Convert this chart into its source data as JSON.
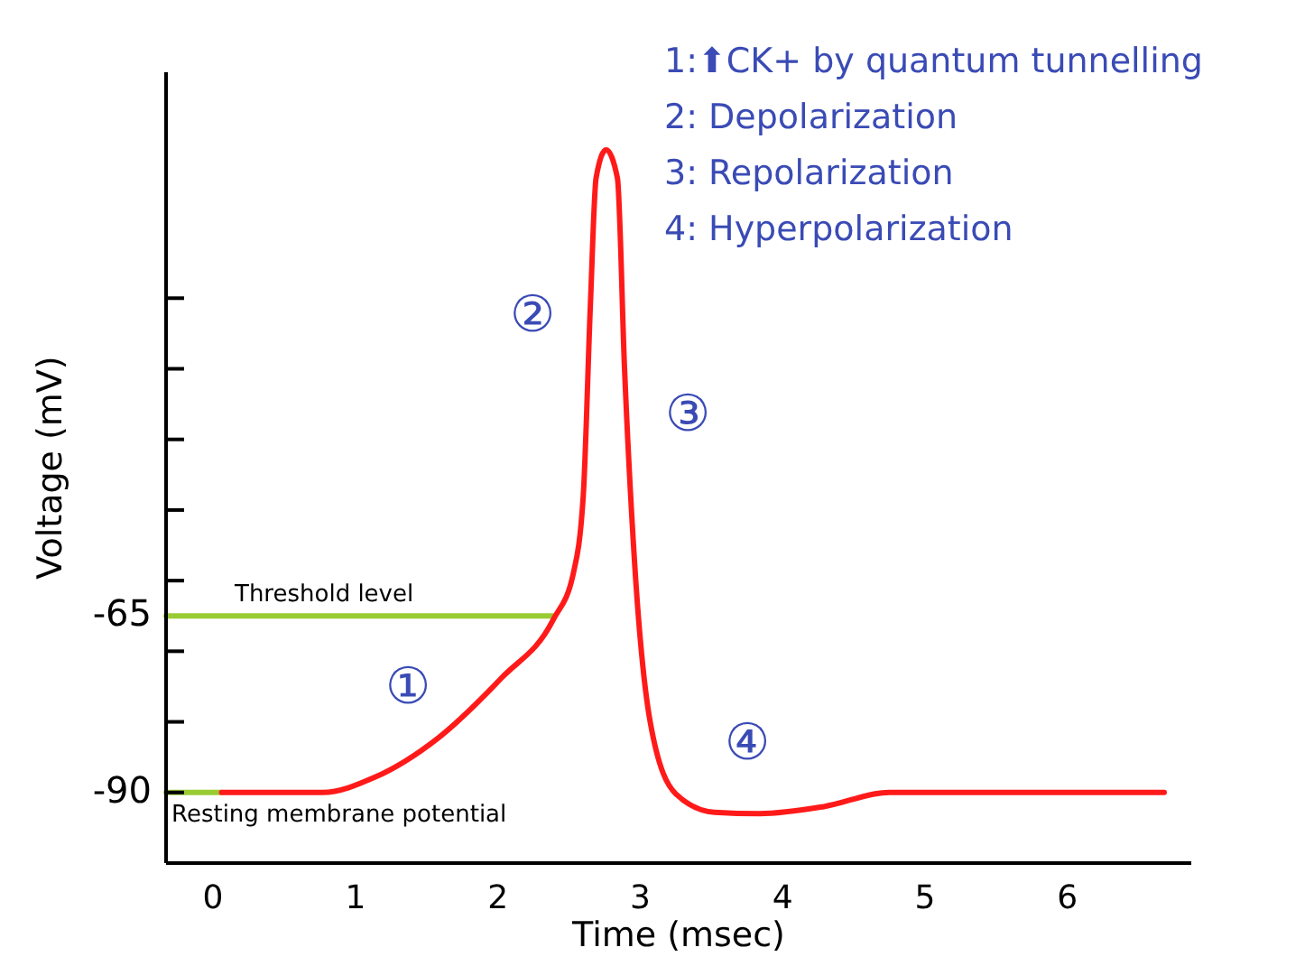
{
  "chart_data": {
    "type": "line",
    "xlabel": "Time (msec)",
    "ylabel": "Voltage (mV)",
    "xlim": [
      -0.33,
      6.87
    ],
    "ylim": [
      -100,
      12
    ],
    "xticks": [
      0,
      1,
      2,
      3,
      4,
      5,
      6
    ],
    "yticks": [
      -90,
      {
        "value": -80,
        "label": null
      },
      {
        "value": -70,
        "label": null
      },
      -65,
      {
        "value": -60,
        "label": null
      },
      {
        "value": -50,
        "label": null
      },
      {
        "value": -40,
        "label": null
      },
      {
        "value": -30,
        "label": null
      },
      {
        "value": -20,
        "label": null
      }
    ],
    "grid": false,
    "marker": "none",
    "line_style": "solid",
    "series": [
      {
        "color": "#99cc33",
        "x": [
          -0.33,
          2.39
        ],
        "values": [
          -65,
          -65
        ]
      },
      {
        "color": "#99cc33",
        "x": [
          -0.33,
          0.06
        ],
        "values": [
          -90,
          -90
        ]
      },
      {
        "color": "#ff1a1a",
        "x": [
          0.06,
          0.77,
          1.13,
          1.58,
          2.03,
          2.39,
          2.53,
          2.6,
          2.65,
          2.69,
          2.76,
          2.84,
          2.89,
          2.96,
          3.07,
          3.25,
          3.52,
          3.84,
          4.29,
          4.75,
          6.68
        ],
        "values": [
          -90,
          -90,
          -87.9,
          -82.3,
          -73.7,
          -65.5,
          -59,
          -48,
          -21,
          -3,
          1,
          -3,
          -30,
          -57.3,
          -80,
          -90.2,
          -92.8,
          -93,
          -92,
          -90,
          -90
        ]
      }
    ],
    "annotations": [
      "1:⬆CK+ by quantum tunnelling",
      "2: Depolarization",
      "3: Repolarization",
      "4: Hyperpolarization",
      "Threshold level",
      "Resting membrane potential",
      "①",
      "②",
      "③",
      "④"
    ]
  }
}
